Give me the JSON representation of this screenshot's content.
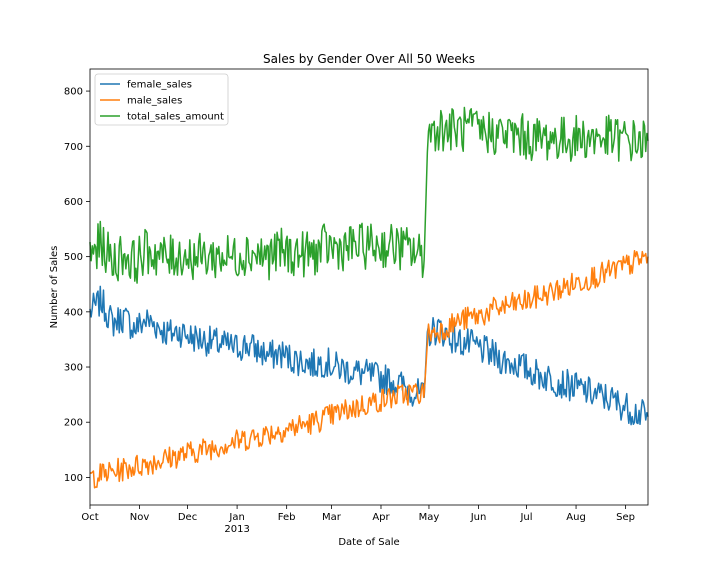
{
  "chart_data": {
    "type": "line",
    "title": "Sales by Gender Over All 50 Weeks",
    "xlabel": "Date of Sale",
    "ylabel": "Number of Sales",
    "x_start": "2012-10-01",
    "x_end": "2013-09-15",
    "xlim": [
      "2012-10-01",
      "2013-09-15"
    ],
    "ylim": [
      50,
      840
    ],
    "x_ticks": [
      {
        "date": "2012-10-01",
        "label": "Oct"
      },
      {
        "date": "2012-11-01",
        "label": "Nov"
      },
      {
        "date": "2012-12-01",
        "label": "Dec"
      },
      {
        "date": "2013-01-01",
        "label": "Jan",
        "sublabel": "2013"
      },
      {
        "date": "2013-02-01",
        "label": "Feb"
      },
      {
        "date": "2013-03-01",
        "label": "Mar"
      },
      {
        "date": "2013-04-01",
        "label": "Apr"
      },
      {
        "date": "2013-05-01",
        "label": "May"
      },
      {
        "date": "2013-06-01",
        "label": "Jun"
      },
      {
        "date": "2013-07-01",
        "label": "Jul"
      },
      {
        "date": "2013-08-01",
        "label": "Aug"
      },
      {
        "date": "2013-09-01",
        "label": "Sep"
      }
    ],
    "y_ticks": [
      100,
      200,
      300,
      400,
      500,
      600,
      700,
      800
    ],
    "legend_position": "top-left",
    "grid": false,
    "series": [
      {
        "name": "female_sales",
        "color": "#1f77b4",
        "points": [
          [
            "2012-10-01",
            400
          ],
          [
            "2012-10-08",
            420
          ],
          [
            "2012-10-15",
            380
          ],
          [
            "2012-10-22",
            390
          ],
          [
            "2012-10-29",
            370
          ],
          [
            "2012-11-05",
            385
          ],
          [
            "2012-11-12",
            375
          ],
          [
            "2012-11-19",
            360
          ],
          [
            "2012-11-26",
            365
          ],
          [
            "2012-12-03",
            355
          ],
          [
            "2012-12-10",
            350
          ],
          [
            "2012-12-17",
            345
          ],
          [
            "2012-12-24",
            340
          ],
          [
            "2012-12-31",
            335
          ],
          [
            "2013-01-07",
            340
          ],
          [
            "2013-01-14",
            330
          ],
          [
            "2013-01-21",
            320
          ],
          [
            "2013-01-28",
            325
          ],
          [
            "2013-02-04",
            315
          ],
          [
            "2013-02-11",
            310
          ],
          [
            "2013-02-18",
            305
          ],
          [
            "2013-02-25",
            310
          ],
          [
            "2013-03-04",
            300
          ],
          [
            "2013-03-11",
            295
          ],
          [
            "2013-03-18",
            290
          ],
          [
            "2013-03-25",
            285
          ],
          [
            "2013-04-01",
            280
          ],
          [
            "2013-04-08",
            275
          ],
          [
            "2013-04-15",
            265
          ],
          [
            "2013-04-22",
            255
          ],
          [
            "2013-04-28",
            245
          ],
          [
            "2013-04-30",
            360
          ],
          [
            "2013-05-07",
            370
          ],
          [
            "2013-05-14",
            355
          ],
          [
            "2013-05-21",
            345
          ],
          [
            "2013-05-28",
            340
          ],
          [
            "2013-06-04",
            330
          ],
          [
            "2013-06-11",
            320
          ],
          [
            "2013-06-18",
            310
          ],
          [
            "2013-06-25",
            305
          ],
          [
            "2013-07-02",
            295
          ],
          [
            "2013-07-09",
            285
          ],
          [
            "2013-07-16",
            280
          ],
          [
            "2013-07-23",
            270
          ],
          [
            "2013-07-30",
            265
          ],
          [
            "2013-08-06",
            258
          ],
          [
            "2013-08-13",
            250
          ],
          [
            "2013-08-20",
            245
          ],
          [
            "2013-08-27",
            235
          ],
          [
            "2013-09-03",
            225
          ],
          [
            "2013-09-10",
            215
          ],
          [
            "2013-09-15",
            210
          ]
        ]
      },
      {
        "name": "male_sales",
        "color": "#ff7f0e",
        "points": [
          [
            "2012-10-01",
            100
          ],
          [
            "2012-10-08",
            105
          ],
          [
            "2012-10-15",
            110
          ],
          [
            "2012-10-22",
            115
          ],
          [
            "2012-10-29",
            120
          ],
          [
            "2012-11-05",
            125
          ],
          [
            "2012-11-12",
            130
          ],
          [
            "2012-11-19",
            135
          ],
          [
            "2012-11-26",
            140
          ],
          [
            "2012-12-03",
            145
          ],
          [
            "2012-12-10",
            150
          ],
          [
            "2012-12-17",
            155
          ],
          [
            "2012-12-24",
            160
          ],
          [
            "2012-12-31",
            165
          ],
          [
            "2013-01-07",
            170
          ],
          [
            "2013-01-14",
            175
          ],
          [
            "2013-01-21",
            180
          ],
          [
            "2013-01-28",
            185
          ],
          [
            "2013-02-04",
            190
          ],
          [
            "2013-02-11",
            195
          ],
          [
            "2013-02-18",
            200
          ],
          [
            "2013-02-25",
            208
          ],
          [
            "2013-03-04",
            215
          ],
          [
            "2013-03-11",
            222
          ],
          [
            "2013-03-18",
            228
          ],
          [
            "2013-03-25",
            235
          ],
          [
            "2013-04-01",
            240
          ],
          [
            "2013-04-08",
            245
          ],
          [
            "2013-04-15",
            250
          ],
          [
            "2013-04-22",
            255
          ],
          [
            "2013-04-28",
            250
          ],
          [
            "2013-04-30",
            360
          ],
          [
            "2013-05-07",
            365
          ],
          [
            "2013-05-14",
            375
          ],
          [
            "2013-05-21",
            385
          ],
          [
            "2013-05-28",
            390
          ],
          [
            "2013-06-04",
            395
          ],
          [
            "2013-06-11",
            405
          ],
          [
            "2013-06-18",
            410
          ],
          [
            "2013-06-25",
            415
          ],
          [
            "2013-07-02",
            420
          ],
          [
            "2013-07-09",
            428
          ],
          [
            "2013-07-16",
            435
          ],
          [
            "2013-07-23",
            442
          ],
          [
            "2013-07-30",
            450
          ],
          [
            "2013-08-06",
            458
          ],
          [
            "2013-08-13",
            465
          ],
          [
            "2013-08-20",
            470
          ],
          [
            "2013-08-27",
            478
          ],
          [
            "2013-09-03",
            485
          ],
          [
            "2013-09-10",
            495
          ],
          [
            "2013-09-15",
            500
          ]
        ]
      },
      {
        "name": "total_sales_amount",
        "color": "#2ca02c",
        "points": [
          [
            "2012-10-01",
            500
          ],
          [
            "2012-10-08",
            525
          ],
          [
            "2012-10-15",
            490
          ],
          [
            "2012-10-22",
            505
          ],
          [
            "2012-10-29",
            490
          ],
          [
            "2012-11-05",
            510
          ],
          [
            "2012-11-12",
            505
          ],
          [
            "2012-11-19",
            495
          ],
          [
            "2012-11-26",
            505
          ],
          [
            "2012-12-03",
            500
          ],
          [
            "2012-12-10",
            500
          ],
          [
            "2012-12-17",
            500
          ],
          [
            "2012-12-24",
            500
          ],
          [
            "2012-12-31",
            500
          ],
          [
            "2013-01-07",
            510
          ],
          [
            "2013-01-14",
            505
          ],
          [
            "2013-01-21",
            500
          ],
          [
            "2013-01-28",
            510
          ],
          [
            "2013-02-04",
            505
          ],
          [
            "2013-02-11",
            505
          ],
          [
            "2013-02-18",
            505
          ],
          [
            "2013-02-25",
            518
          ],
          [
            "2013-03-04",
            515
          ],
          [
            "2013-03-11",
            517
          ],
          [
            "2013-03-18",
            518
          ],
          [
            "2013-03-25",
            520
          ],
          [
            "2013-04-01",
            520
          ],
          [
            "2013-04-08",
            520
          ],
          [
            "2013-04-15",
            515
          ],
          [
            "2013-04-22",
            510
          ],
          [
            "2013-04-28",
            495
          ],
          [
            "2013-04-30",
            720
          ],
          [
            "2013-05-07",
            735
          ],
          [
            "2013-05-14",
            730
          ],
          [
            "2013-05-21",
            730
          ],
          [
            "2013-05-28",
            730
          ],
          [
            "2013-06-04",
            725
          ],
          [
            "2013-06-11",
            725
          ],
          [
            "2013-06-18",
            720
          ],
          [
            "2013-06-25",
            720
          ],
          [
            "2013-07-02",
            715
          ],
          [
            "2013-07-09",
            713
          ],
          [
            "2013-07-16",
            715
          ],
          [
            "2013-07-23",
            712
          ],
          [
            "2013-07-30",
            715
          ],
          [
            "2013-08-06",
            716
          ],
          [
            "2013-08-13",
            715
          ],
          [
            "2013-08-20",
            715
          ],
          [
            "2013-08-27",
            713
          ],
          [
            "2013-09-03",
            710
          ],
          [
            "2013-09-10",
            710
          ],
          [
            "2013-09-15",
            710
          ]
        ]
      }
    ]
  }
}
